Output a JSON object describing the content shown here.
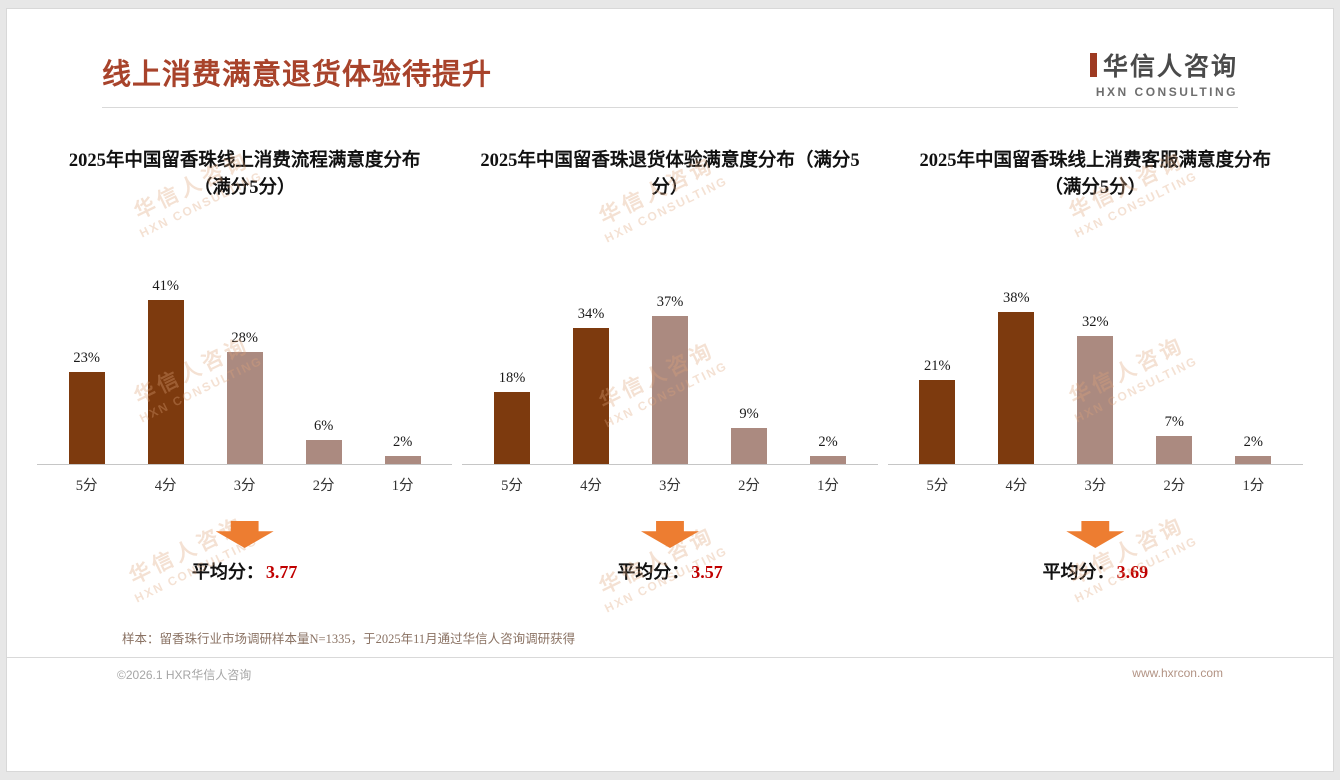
{
  "page": {
    "title": "线上消费满意退货体验待提升",
    "logo": {
      "name": "华信人咨询",
      "subtitle": "HXN CONSULTING"
    },
    "watermark_line1": "华信人咨询",
    "watermark_line2": "HXN CONSULTING",
    "footnote": "样本：留香珠行业市场调研样本量N=1335，于2025年11月通过华信人咨询调研获得",
    "footer": {
      "copyright": "©2026.1 HXR华信人咨询",
      "website": "www.hxrcon.com"
    }
  },
  "colors": {
    "title_accent": "#a8432b",
    "bar_dark": "#7d3a0e",
    "bar_light": "#ab8a80",
    "arrow": "#ed7d31",
    "average_value": "#c00000"
  },
  "chart_data": [
    {
      "type": "bar",
      "title": "2025年中国留香珠线上消费流程满意度分布（满分5分）",
      "categories": [
        "5分",
        "4分",
        "3分",
        "2分",
        "1分"
      ],
      "values": [
        23,
        41,
        28,
        6,
        2
      ],
      "value_labels": [
        "23%",
        "41%",
        "28%",
        "6%",
        "2%"
      ],
      "styles": [
        "dark",
        "dark",
        "light",
        "light",
        "light"
      ],
      "ylim": [
        0,
        45
      ],
      "average_label": "平均分：",
      "average": "3.77"
    },
    {
      "type": "bar",
      "title": "2025年中国留香珠退货体验满意度分布（满分5分）",
      "categories": [
        "5分",
        "4分",
        "3分",
        "2分",
        "1分"
      ],
      "values": [
        18,
        34,
        37,
        9,
        2
      ],
      "value_labels": [
        "18%",
        "34%",
        "37%",
        "9%",
        "2%"
      ],
      "styles": [
        "dark",
        "dark",
        "light",
        "light",
        "light"
      ],
      "ylim": [
        0,
        45
      ],
      "average_label": "平均分：",
      "average": "3.57"
    },
    {
      "type": "bar",
      "title": "2025年中国留香珠线上消费客服满意度分布（满分5分）",
      "categories": [
        "5分",
        "4分",
        "3分",
        "2分",
        "1分"
      ],
      "values": [
        21,
        38,
        32,
        7,
        2
      ],
      "value_labels": [
        "21%",
        "38%",
        "32%",
        "7%",
        "2%"
      ],
      "styles": [
        "dark",
        "dark",
        "light",
        "light",
        "light"
      ],
      "ylim": [
        0,
        45
      ],
      "average_label": "平均分：",
      "average": "3.69"
    }
  ]
}
